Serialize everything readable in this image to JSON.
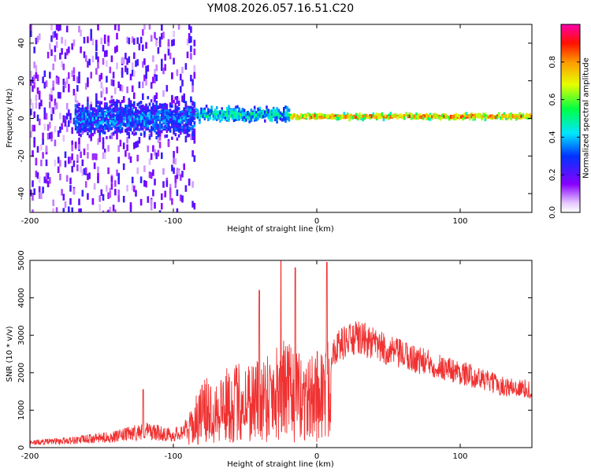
{
  "title": "YM08.2026.057.16.51.C20",
  "chart_data": [
    {
      "type": "heatmap",
      "name": "spectrogram",
      "xlabel": "Height of straight line (km)",
      "ylabel": "Frequency (Hz)",
      "xlim": [
        -200,
        150
      ],
      "ylim": [
        -50,
        50
      ],
      "xticks": [
        -200,
        -100,
        0,
        100
      ],
      "yticks": [
        -40,
        -20,
        0,
        20,
        40
      ],
      "colorbar": {
        "label": "Normalized spectral amplitude",
        "range": [
          0.0,
          1.0
        ],
        "ticks": [
          0.0,
          0.2,
          0.4,
          0.6,
          0.8
        ]
      },
      "regions": [
        {
          "x_from": -200,
          "x_to": -85,
          "description_level": "scattered noise",
          "amp_range": [
            0.05,
            0.25
          ],
          "freq_spread": 50
        },
        {
          "x_from": -170,
          "x_to": -85,
          "center_freq": 0,
          "amp_range": [
            0.2,
            0.45
          ],
          "freq_spread": 12
        },
        {
          "x_from": -85,
          "x_to": -20,
          "center_freq": 2,
          "amp_range": [
            0.3,
            0.6
          ],
          "freq_spread": 5
        },
        {
          "x_from": -20,
          "x_to": 150,
          "center_freq": 1,
          "amp_range": [
            0.6,
            0.95
          ],
          "freq_spread": 2
        }
      ]
    },
    {
      "type": "line",
      "name": "snr",
      "xlabel": "Height of straight line (km)",
      "ylabel": "SNR (10 * v/v)",
      "xlim": [
        -200,
        150
      ],
      "ylim": [
        0,
        5000
      ],
      "xticks": [
        -200,
        -100,
        0,
        100
      ],
      "yticks": [
        0,
        1000,
        2000,
        3000,
        4000,
        5000
      ],
      "color": "#f03232",
      "envelope": [
        {
          "x": -200,
          "y": 200
        },
        {
          "x": -170,
          "y": 300
        },
        {
          "x": -140,
          "y": 450
        },
        {
          "x": -120,
          "y": 700
        },
        {
          "x": -100,
          "y": 500
        },
        {
          "x": -90,
          "y": 800
        },
        {
          "x": -80,
          "y": 1800
        },
        {
          "x": -70,
          "y": 2000
        },
        {
          "x": -55,
          "y": 2300
        },
        {
          "x": -40,
          "y": 2500
        },
        {
          "x": -25,
          "y": 3000
        },
        {
          "x": -15,
          "y": 2600
        },
        {
          "x": -5,
          "y": 2400
        },
        {
          "x": 0,
          "y": 2700
        },
        {
          "x": 10,
          "y": 3000
        },
        {
          "x": 20,
          "y": 3300
        },
        {
          "x": 30,
          "y": 3400
        },
        {
          "x": 50,
          "y": 3000
        },
        {
          "x": 80,
          "y": 2600
        },
        {
          "x": 110,
          "y": 2200
        },
        {
          "x": 130,
          "y": 1900
        },
        {
          "x": 150,
          "y": 1800
        }
      ],
      "peaks": [
        {
          "x": -121,
          "y": 1550
        },
        {
          "x": -40,
          "y": 4200
        },
        {
          "x": -25,
          "y": 5000
        },
        {
          "x": -15,
          "y": 4800
        },
        {
          "x": 7,
          "y": 4950
        }
      ]
    }
  ]
}
